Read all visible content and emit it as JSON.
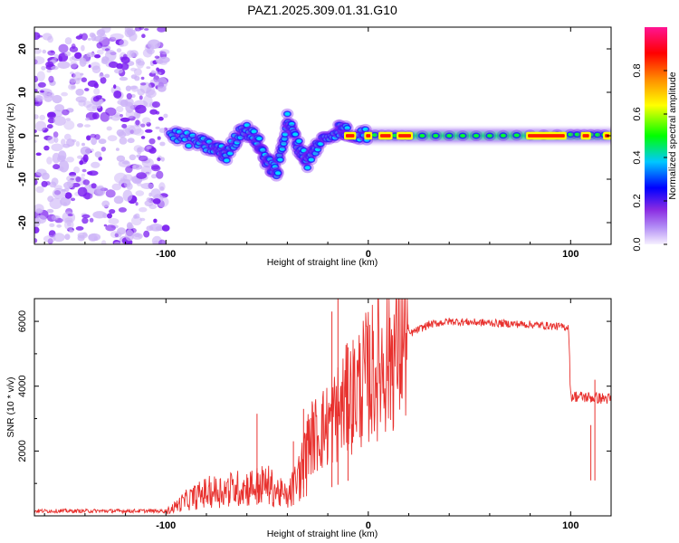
{
  "title": "PAZ1.2025.309.01.31.G10",
  "colors": {
    "background": "#ffffff",
    "snr_line": "#e8312e",
    "scatter_purple": "#7a1cf0",
    "scatter_light": "#cdb4f7",
    "colormap": [
      "#c8b4f5",
      "#8a2be2",
      "#0000ff",
      "#00c8ff",
      "#00ff00",
      "#ffff00",
      "#ff8c00",
      "#ff0000",
      "#ff1493",
      "#ff3cb4"
    ]
  },
  "chart_data": [
    {
      "type": "heatmap",
      "name": "spectrogram",
      "xlabel": "Height of straight line (km)",
      "ylabel": "Frequency (Hz)",
      "xlim": [
        -165,
        120
      ],
      "ylim": [
        -25,
        25
      ],
      "xticks": [
        -100,
        0,
        100
      ],
      "xtick_labels": [
        "-100",
        "0",
        "100"
      ],
      "yticks": [
        -20,
        -10,
        0,
        10,
        20
      ],
      "ytick_labels": [
        "-20",
        "-10",
        "0",
        "10",
        "20"
      ],
      "noise_region_x": [
        -165,
        -100
      ],
      "main_tone": [
        {
          "x": -98,
          "f": 0.5
        },
        {
          "x": -85,
          "f": -1.5
        },
        {
          "x": -75,
          "f": -3
        },
        {
          "x": -70,
          "f": -4.5
        },
        {
          "x": -62,
          "f": 2
        },
        {
          "x": -55,
          "f": -1
        },
        {
          "x": -50,
          "f": -6
        },
        {
          "x": -45,
          "f": -8.5
        },
        {
          "x": -40,
          "f": 4
        },
        {
          "x": -35,
          "f": -2
        },
        {
          "x": -30,
          "f": -6
        },
        {
          "x": -25,
          "f": -2
        },
        {
          "x": -15,
          "f": 1.5
        },
        {
          "x": -10,
          "f": 0.8
        },
        {
          "x": 0,
          "f": 0.2
        },
        {
          "x": 20,
          "f": 0
        },
        {
          "x": 60,
          "f": 0
        },
        {
          "x": 100,
          "f": 0.3
        },
        {
          "x": 120,
          "f": 0.2
        }
      ]
    },
    {
      "type": "line",
      "name": "snr",
      "xlabel": "Height of straight line (km)",
      "ylabel": "SNR (10 * v/v)",
      "xlim": [
        -165,
        120
      ],
      "ylim": [
        0,
        6700
      ],
      "xticks": [
        -100,
        0,
        100
      ],
      "xtick_labels": [
        "-100",
        "0",
        "100"
      ],
      "yticks": [
        2000,
        4000,
        6000
      ],
      "ytick_labels": [
        "2000",
        "4000",
        "6000"
      ],
      "envelope": [
        {
          "x": -165,
          "y": 150
        },
        {
          "x": -100,
          "y": 150
        },
        {
          "x": -90,
          "y": 600
        },
        {
          "x": -80,
          "y": 900
        },
        {
          "x": -70,
          "y": 1000
        },
        {
          "x": -60,
          "y": 1100
        },
        {
          "x": -50,
          "y": 1200
        },
        {
          "x": -40,
          "y": 700
        },
        {
          "x": -35,
          "y": 1400
        },
        {
          "x": -30,
          "y": 2300
        },
        {
          "x": -20,
          "y": 2800
        },
        {
          "x": -10,
          "y": 3600
        },
        {
          "x": 0,
          "y": 4300
        },
        {
          "x": 10,
          "y": 4900
        },
        {
          "x": 20,
          "y": 5600
        },
        {
          "x": 30,
          "y": 5900
        },
        {
          "x": 40,
          "y": 6000
        },
        {
          "x": 60,
          "y": 5950
        },
        {
          "x": 80,
          "y": 5900
        },
        {
          "x": 99,
          "y": 5820
        },
        {
          "x": 100,
          "y": 3700
        },
        {
          "x": 110,
          "y": 3650
        },
        {
          "x": 120,
          "y": 3600
        }
      ],
      "peaks": [
        {
          "x": -55,
          "y": 3150
        },
        {
          "x": -37,
          "y": 2300
        },
        {
          "x": -32,
          "y": 3300
        },
        {
          "x": -18,
          "y": 6300
        },
        {
          "x": -15,
          "y": 6700
        },
        {
          "x": -10,
          "y": 5200
        },
        {
          "x": 110,
          "y": 2800
        },
        {
          "x": 112,
          "y": 4200
        }
      ]
    }
  ],
  "colorbar": {
    "label": "Normalized spectral amplitude",
    "range": [
      0,
      1
    ],
    "ticks": [
      0.0,
      0.2,
      0.4,
      0.6,
      0.8
    ],
    "tick_labels": [
      "0.0",
      "0.2",
      "0.4",
      "0.6",
      "0.8"
    ]
  }
}
